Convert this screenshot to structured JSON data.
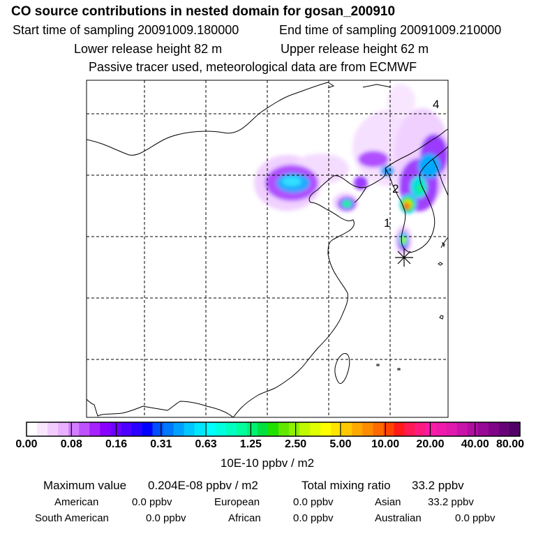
{
  "header": {
    "title": "CO  source contributions in nested domain for gosan_200910",
    "start_time": "Start time of sampling 20091009.180000",
    "end_time": "End time of sampling 20091009.210000",
    "lower_release": "Lower release height   82 m",
    "upper_release": "Upper release height   62 m",
    "note": "Passive tracer used, meteorological data are from ECMWF"
  },
  "map": {
    "labels": [
      "1",
      "2",
      "4"
    ],
    "station_marker": "asterisk-marker"
  },
  "colorbar": {
    "ticks": [
      "0.00",
      "0.08",
      "0.16",
      "0.31",
      "0.63",
      "1.25",
      "2.50",
      "5.00",
      "10.00",
      "20.00",
      "40.00",
      "80.00"
    ],
    "colors": [
      "#ffffff",
      "#fbe6ff",
      "#f2ccff",
      "#e8b0ff",
      "#d27cff",
      "#bf52ff",
      "#a622ff",
      "#8a00ff",
      "#6e00ff",
      "#4d00ff",
      "#2a00ff",
      "#0000ff",
      "#0050ff",
      "#0078ff",
      "#00a0ff",
      "#00c8ff",
      "#00e6ff",
      "#00ffff",
      "#00ffe0",
      "#00ffc0",
      "#00ff9c",
      "#00f070",
      "#00e040",
      "#20e000",
      "#60e800",
      "#90f000",
      "#c0f800",
      "#e0ff00",
      "#ffff00",
      "#ffe400",
      "#ffc800",
      "#ffa800",
      "#ff8c00",
      "#ff6a00",
      "#ff4400",
      "#ff1a1a",
      "#ff1a55",
      "#ff1a80",
      "#ff1aa6",
      "#f01aaa",
      "#e01aad",
      "#c814a8",
      "#b00ea0",
      "#980896",
      "#800488",
      "#680278",
      "#500066"
    ],
    "unit": "10E-10 ppbv / m2"
  },
  "footer": {
    "max_label": "Maximum value",
    "max_value": "0.204E-08 ppbv / m2",
    "total_label": "Total mixing ratio",
    "total_value": "33.2 ppbv",
    "regions": [
      {
        "name": "American",
        "value": "0.0 ppbv"
      },
      {
        "name": "European",
        "value": "0.0 ppbv"
      },
      {
        "name": "Asian",
        "value": "33.2 ppbv"
      },
      {
        "name": "South American",
        "value": "0.0 ppbv"
      },
      {
        "name": "African",
        "value": "0.0 ppbv"
      },
      {
        "name": "Australian",
        "value": "0.0 ppbv"
      }
    ]
  }
}
